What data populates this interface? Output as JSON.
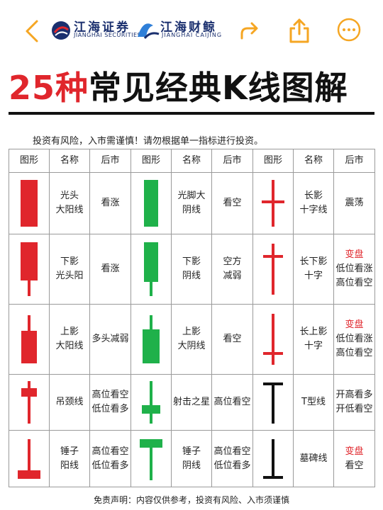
{
  "header": {
    "brand1_name": "江海证券",
    "brand1_sub": "JIANGHAI SECURITIES",
    "brand2_name": "江海财鲸",
    "brand2_sub": "JIANGHAI CAIJING",
    "back_icon": "chevron-left-icon",
    "share_icon": "share-arrow-icon",
    "upload_icon": "upload-icon",
    "more_icon": "more-dots-icon",
    "accent_color": "#f5a623"
  },
  "title": {
    "number": "25种",
    "text": "常见经典K线图解"
  },
  "note": "投资有风险，入市需谨慎！请勿根据单一指标进行投资。",
  "table": {
    "headers": [
      "图形",
      "名称",
      "后市",
      "图形",
      "名称",
      "后市",
      "图形",
      "名称",
      "后市"
    ],
    "rows": [
      [
        {
          "name": [
            "光头",
            "大阳线"
          ],
          "outlook": [
            "看涨"
          ]
        },
        {
          "name": [
            "光脚大",
            "阴线"
          ],
          "outlook": [
            "看空"
          ]
        },
        {
          "name": [
            "长影",
            "十字线"
          ],
          "outlook": [
            "震荡"
          ]
        }
      ],
      [
        {
          "name": [
            "下影",
            "光头阳"
          ],
          "outlook": [
            "看涨"
          ]
        },
        {
          "name": [
            "下影",
            "阴线"
          ],
          "outlook": [
            "空方",
            "减弱"
          ]
        },
        {
          "name": [
            "长下影",
            "十字"
          ],
          "outlook_label": "变盘",
          "outlook": [
            "低位看涨",
            "高位看空"
          ]
        }
      ],
      [
        {
          "name": [
            "上影",
            "大阳线"
          ],
          "outlook": [
            "多头减弱"
          ]
        },
        {
          "name": [
            "上影",
            "大阴线"
          ],
          "outlook": [
            "看空"
          ]
        },
        {
          "name": [
            "长上影",
            "十字"
          ],
          "outlook_label": "变盘",
          "outlook": [
            "低位看涨",
            "高位看空"
          ]
        }
      ],
      [
        {
          "name": [
            "吊颈线"
          ],
          "outlook": [
            "高位看空",
            "低位看多"
          ]
        },
        {
          "name": [
            "射击之星"
          ],
          "outlook": [
            "高位看空"
          ]
        },
        {
          "name": [
            "T型线"
          ],
          "outlook": [
            "开高看多",
            "开低看空"
          ]
        }
      ],
      [
        {
          "name": [
            "锤子",
            "阳线"
          ],
          "outlook": [
            "高位看空",
            "低位看多"
          ]
        },
        {
          "name": [
            "锤子",
            "阴线"
          ],
          "outlook": [
            "高位看空",
            "低位看多"
          ]
        },
        {
          "name": [
            "墓碑线"
          ],
          "outlook_label": "变盘",
          "outlook": [
            "看空"
          ]
        }
      ]
    ],
    "colors": {
      "up": "#e0262c",
      "down": "#1fb14a",
      "neutral": "#111111"
    }
  },
  "footer": "免责声明：内容仅供参考，投资有风险、入市须谨慎"
}
